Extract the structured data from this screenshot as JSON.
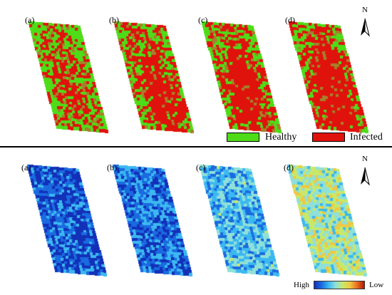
{
  "top_panel": {
    "labels": [
      "(a)",
      "(b)",
      "(c)",
      "(d)"
    ],
    "north_label": "N",
    "legend": [
      {
        "label": "Healthy",
        "color": "#4edc18"
      },
      {
        "label": "Infected",
        "color": "#e0120c"
      }
    ],
    "maps": [
      {
        "infected_share": 0.45
      },
      {
        "infected_share": 0.55
      },
      {
        "infected_share": 0.6
      },
      {
        "infected_share": 0.65
      }
    ],
    "mixed_color": "#a6802a"
  },
  "bottom_panel": {
    "labels": [
      "(a)",
      "(b)",
      "(c)",
      "(d)"
    ],
    "north_label": "N",
    "colorbar": {
      "high_label": "High",
      "low_label": "Low",
      "colors": [
        "#1230b8",
        "#1a6ae0",
        "#3cb8f0",
        "#8fe0d8",
        "#c8e86a",
        "#f0c840",
        "#e87020",
        "#b01808"
      ]
    },
    "maps": [
      {
        "mean_level": 0.14
      },
      {
        "mean_level": 0.2
      },
      {
        "mean_level": 0.33
      },
      {
        "mean_level": 0.5
      }
    ]
  }
}
